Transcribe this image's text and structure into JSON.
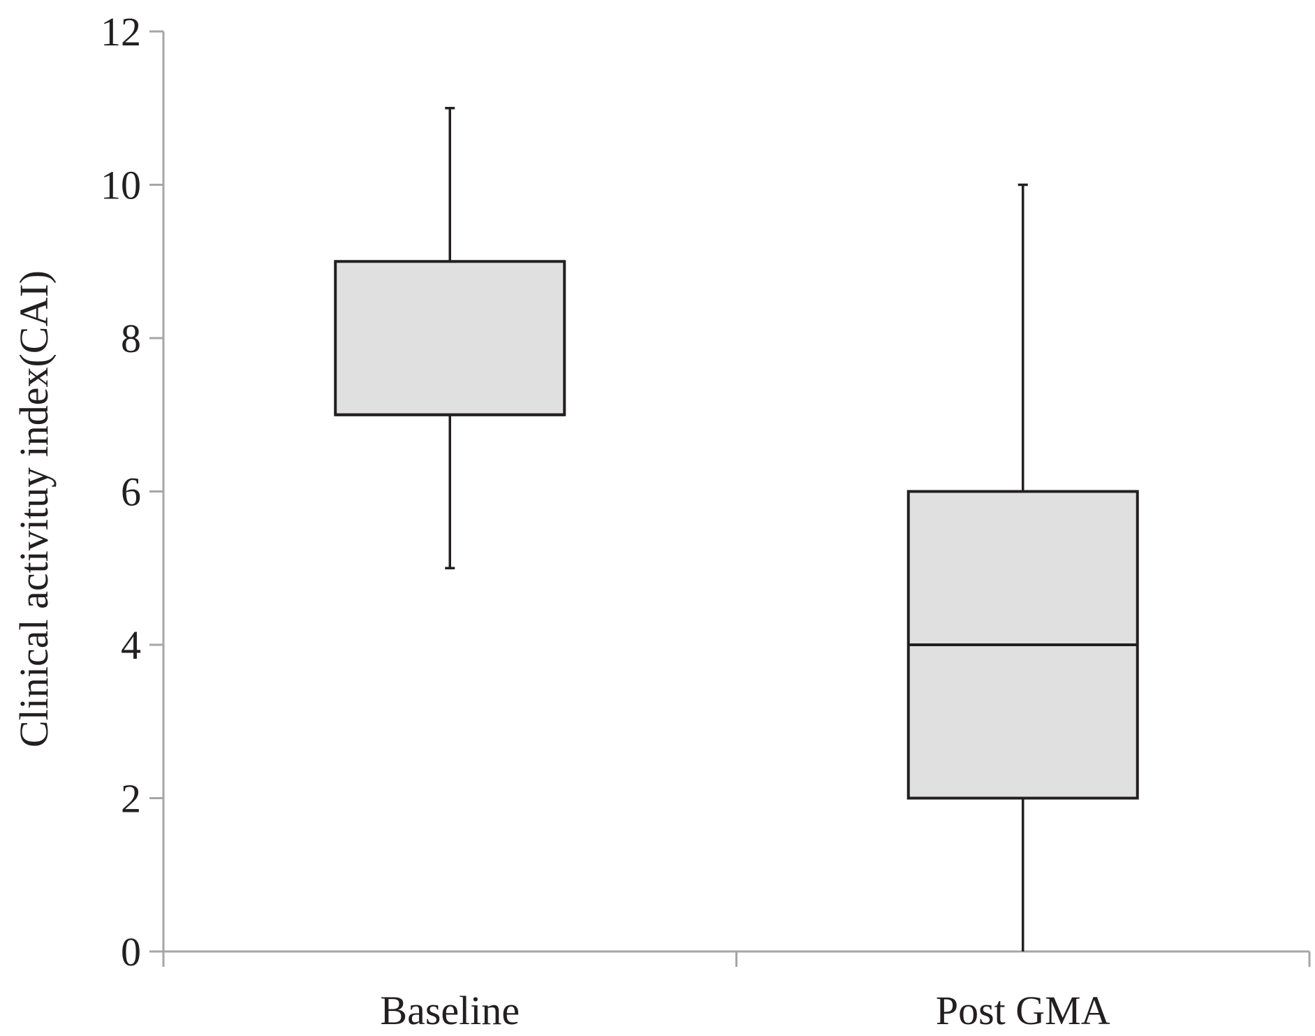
{
  "chart_data": {
    "type": "boxplot",
    "title": "",
    "xlabel": "",
    "ylabel": "Clinical activituy index(CAI)",
    "ylim": [
      0,
      12
    ],
    "yticks": [
      0,
      2,
      4,
      6,
      8,
      10,
      12
    ],
    "grid": false,
    "categories": [
      "Baseline",
      "Post GMA"
    ],
    "boxes": [
      {
        "category": "Baseline",
        "min": 5,
        "q1": 7,
        "median": 7,
        "q3": 9,
        "max": 11
      },
      {
        "category": "Post GMA",
        "min": 0,
        "q1": 2,
        "median": 4,
        "q3": 6,
        "max": 10
      }
    ],
    "colors": {
      "box_fill": "#e0e0e0",
      "box_stroke": "#231f20",
      "axis": "#a6a6a6",
      "text": "#231f20"
    }
  }
}
